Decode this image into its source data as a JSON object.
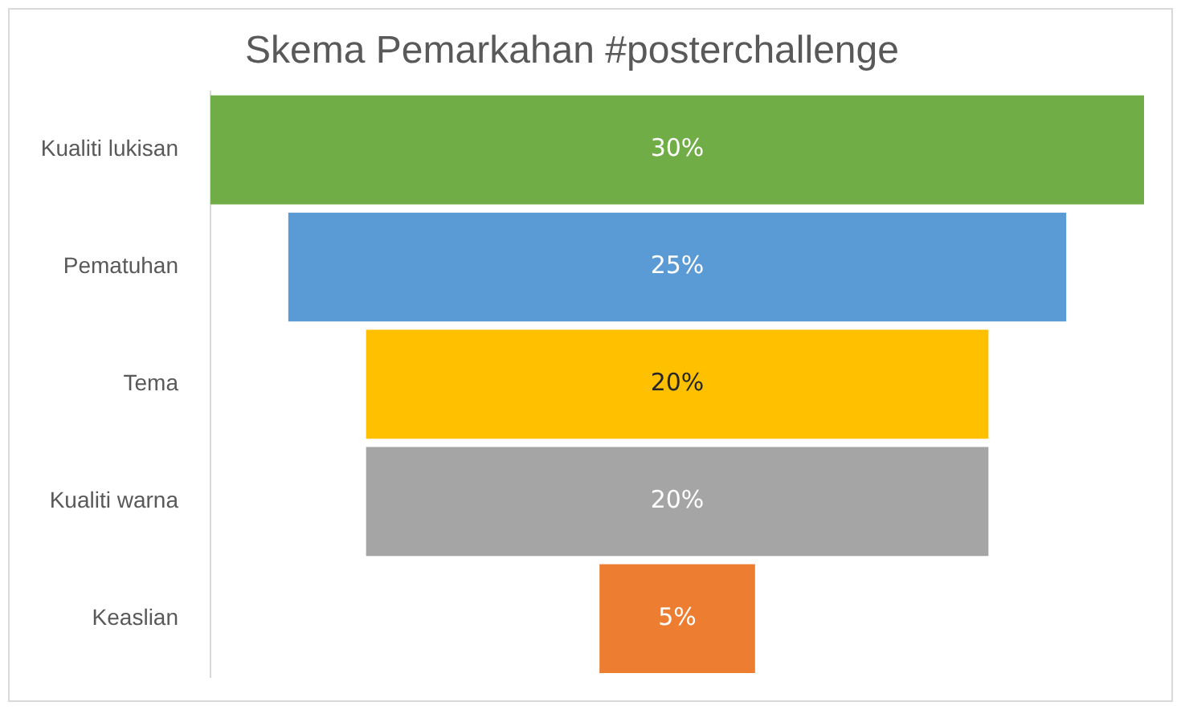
{
  "chart_data": {
    "type": "other",
    "title": "Skema Pemarkahan #posterchallenge",
    "categories": [
      "Kualiti lukisan",
      "Pematuhan",
      "Tema",
      "Kualiti warna",
      "Keaslian"
    ],
    "values": [
      30,
      25,
      20,
      20,
      5
    ],
    "colors": [
      "#70ad47",
      "#5b9bd5",
      "#ffc000",
      "#a5a5a5",
      "#ed7d31"
    ],
    "value_labels": [
      "30%",
      "25%",
      "20%",
      "20%",
      "5%"
    ]
  }
}
